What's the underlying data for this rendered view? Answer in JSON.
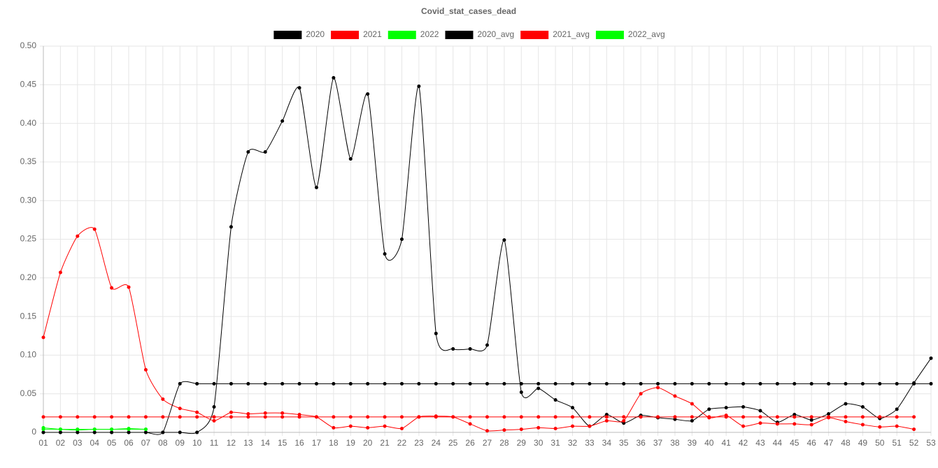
{
  "chart_data": {
    "type": "line",
    "title": "Covid_stat_cases_dead",
    "categories": [
      "01",
      "02",
      "03",
      "04",
      "05",
      "06",
      "07",
      "08",
      "09",
      "10",
      "11",
      "12",
      "13",
      "14",
      "15",
      "16",
      "17",
      "18",
      "19",
      "20",
      "21",
      "22",
      "23",
      "24",
      "25",
      "26",
      "27",
      "28",
      "29",
      "30",
      "31",
      "32",
      "33",
      "34",
      "35",
      "36",
      "37",
      "38",
      "39",
      "40",
      "41",
      "42",
      "43",
      "44",
      "45",
      "46",
      "47",
      "48",
      "49",
      "50",
      "51",
      "52",
      "53"
    ],
    "ylim": [
      0,
      0.5
    ],
    "yticks": [
      0,
      {
        "value": 0.05,
        "label": "0.05"
      },
      {
        "value": 0.1,
        "label": "0.10"
      },
      0.15,
      {
        "value": 0.2,
        "label": "0.20"
      },
      0.25,
      {
        "value": 0.3,
        "label": "0.30"
      },
      0.35,
      {
        "value": 0.4,
        "label": "0.40"
      },
      0.45,
      {
        "value": 0.5,
        "label": "0.50"
      }
    ],
    "grid": true,
    "legend": "top",
    "series": [
      {
        "name": "2020",
        "color": "#000000",
        "values": [
          0,
          0,
          0,
          0,
          0,
          0,
          0,
          0,
          0,
          0,
          0.033,
          0.266,
          0.363,
          0.363,
          0.403,
          0.446,
          0.317,
          0.459,
          0.354,
          0.438,
          0.231,
          0.25,
          0.448,
          0.128,
          0.108,
          0.108,
          0.113,
          0.249,
          0.052,
          0.057,
          0.042,
          0.032,
          0.008,
          0.023,
          0.012,
          0.022,
          0.019,
          0.017,
          0.015,
          0.03,
          0.032,
          0.033,
          0.028,
          0.013,
          0.023,
          0.016,
          0.024,
          0.037,
          0.033,
          0.018,
          0.03,
          0.064,
          0.096
        ]
      },
      {
        "name": "2021",
        "color": "#ff0000",
        "values": [
          0.123,
          0.207,
          0.254,
          0.263,
          0.187,
          0.188,
          0.081,
          0.043,
          0.031,
          0.026,
          0.015,
          0.026,
          0.024,
          0.025,
          0.025,
          0.023,
          0.02,
          0.006,
          0.008,
          0.006,
          0.008,
          0.005,
          0.02,
          0.021,
          0.02,
          0.011,
          0.002,
          0.003,
          0.004,
          0.006,
          0.005,
          0.008,
          0.008,
          0.015,
          0.015,
          0.05,
          0.058,
          0.047,
          0.037,
          0.019,
          0.022,
          0.008,
          0.012,
          0.011,
          0.011,
          0.01,
          0.019,
          0.014,
          0.01,
          0.007,
          0.008,
          0.004,
          null
        ]
      },
      {
        "name": "2022",
        "color": "#00ff00",
        "values": [
          0.006,
          0.004,
          0.003,
          0.004,
          0.004,
          0.005,
          0.004,
          null,
          null,
          null,
          null,
          null,
          null,
          null,
          null,
          null,
          null,
          null,
          null,
          null,
          null,
          null,
          null,
          null,
          null,
          null,
          null,
          null,
          null,
          null,
          null,
          null,
          null,
          null,
          null,
          null,
          null,
          null,
          null,
          null,
          null,
          null,
          null,
          null,
          null,
          null,
          null,
          null,
          null,
          null,
          null,
          null,
          null
        ]
      },
      {
        "name": "2020_avg",
        "color": "#000000",
        "values": [
          0,
          0,
          0,
          0,
          0,
          0,
          0,
          0,
          0.063,
          0.063,
          0.063,
          0.063,
          0.063,
          0.063,
          0.063,
          0.063,
          0.063,
          0.063,
          0.063,
          0.063,
          0.063,
          0.063,
          0.063,
          0.063,
          0.063,
          0.063,
          0.063,
          0.063,
          0.063,
          0.063,
          0.063,
          0.063,
          0.063,
          0.063,
          0.063,
          0.063,
          0.063,
          0.063,
          0.063,
          0.063,
          0.063,
          0.063,
          0.063,
          0.063,
          0.063,
          0.063,
          0.063,
          0.063,
          0.063,
          0.063,
          0.063,
          0.063,
          0.063
        ]
      },
      {
        "name": "2021_avg",
        "color": "#ff0000",
        "values": [
          0.02,
          0.02,
          0.02,
          0.02,
          0.02,
          0.02,
          0.02,
          0.02,
          0.02,
          0.02,
          0.02,
          0.02,
          0.02,
          0.02,
          0.02,
          0.02,
          0.02,
          0.02,
          0.02,
          0.02,
          0.02,
          0.02,
          0.02,
          0.02,
          0.02,
          0.02,
          0.02,
          0.02,
          0.02,
          0.02,
          0.02,
          0.02,
          0.02,
          0.02,
          0.02,
          0.02,
          0.02,
          0.02,
          0.02,
          0.02,
          0.02,
          0.02,
          0.02,
          0.02,
          0.02,
          0.02,
          0.02,
          0.02,
          0.02,
          0.02,
          0.02,
          0.02,
          null
        ]
      },
      {
        "name": "2022_avg",
        "color": "#00ff00",
        "values": [
          0.004,
          0.004,
          0.004,
          0.004,
          0.004,
          0.004,
          0.004,
          null,
          null,
          null,
          null,
          null,
          null,
          null,
          null,
          null,
          null,
          null,
          null,
          null,
          null,
          null,
          null,
          null,
          null,
          null,
          null,
          null,
          null,
          null,
          null,
          null,
          null,
          null,
          null,
          null,
          null,
          null,
          null,
          null,
          null,
          null,
          null,
          null,
          null,
          null,
          null,
          null,
          null,
          null,
          null,
          null,
          null
        ]
      }
    ]
  }
}
